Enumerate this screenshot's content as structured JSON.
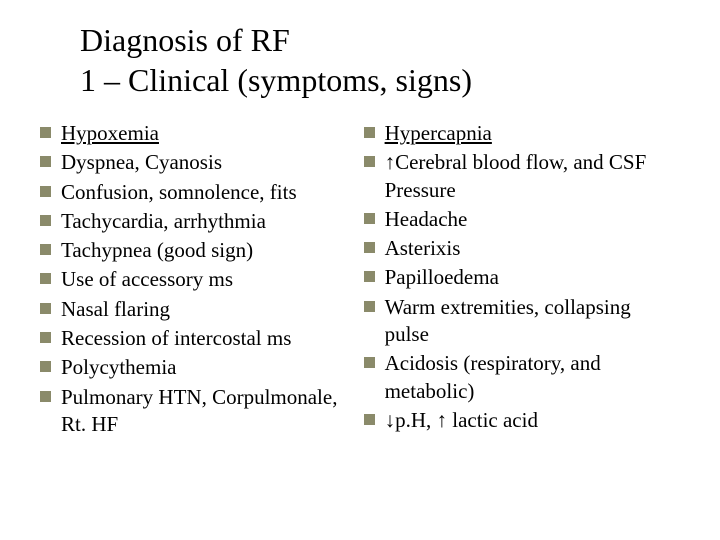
{
  "title": {
    "line1": "Diagnosis of RF",
    "line2": "1 – Clinical (symptoms, signs)"
  },
  "style": {
    "bullet_color": "#8a8a6a",
    "title_fontsize": 32,
    "body_fontsize": 21,
    "background_color": "#ffffff",
    "text_color": "#000000"
  },
  "left_column": {
    "heading": "Hypoxemia",
    "items": [
      "Dyspnea, Cyanosis",
      "Confusion, somnolence, fits",
      "Tachycardia, arrhythmia",
      "Tachypnea (good sign)",
      "Use of accessory ms",
      "Nasal flaring",
      "Recession of intercostal ms",
      "Polycythemia",
      "Pulmonary HTN, Corpulmonale, Rt. HF"
    ]
  },
  "right_column": {
    "heading": "Hypercapnia",
    "items": [
      "↑Cerebral blood flow, and CSF Pressure",
      "Headache",
      "Asterixis",
      "Papilloedema",
      "Warm extremities, collapsing pulse",
      "Acidosis (respiratory, and metabolic)",
      "↓p.H, ↑ lactic acid"
    ]
  }
}
